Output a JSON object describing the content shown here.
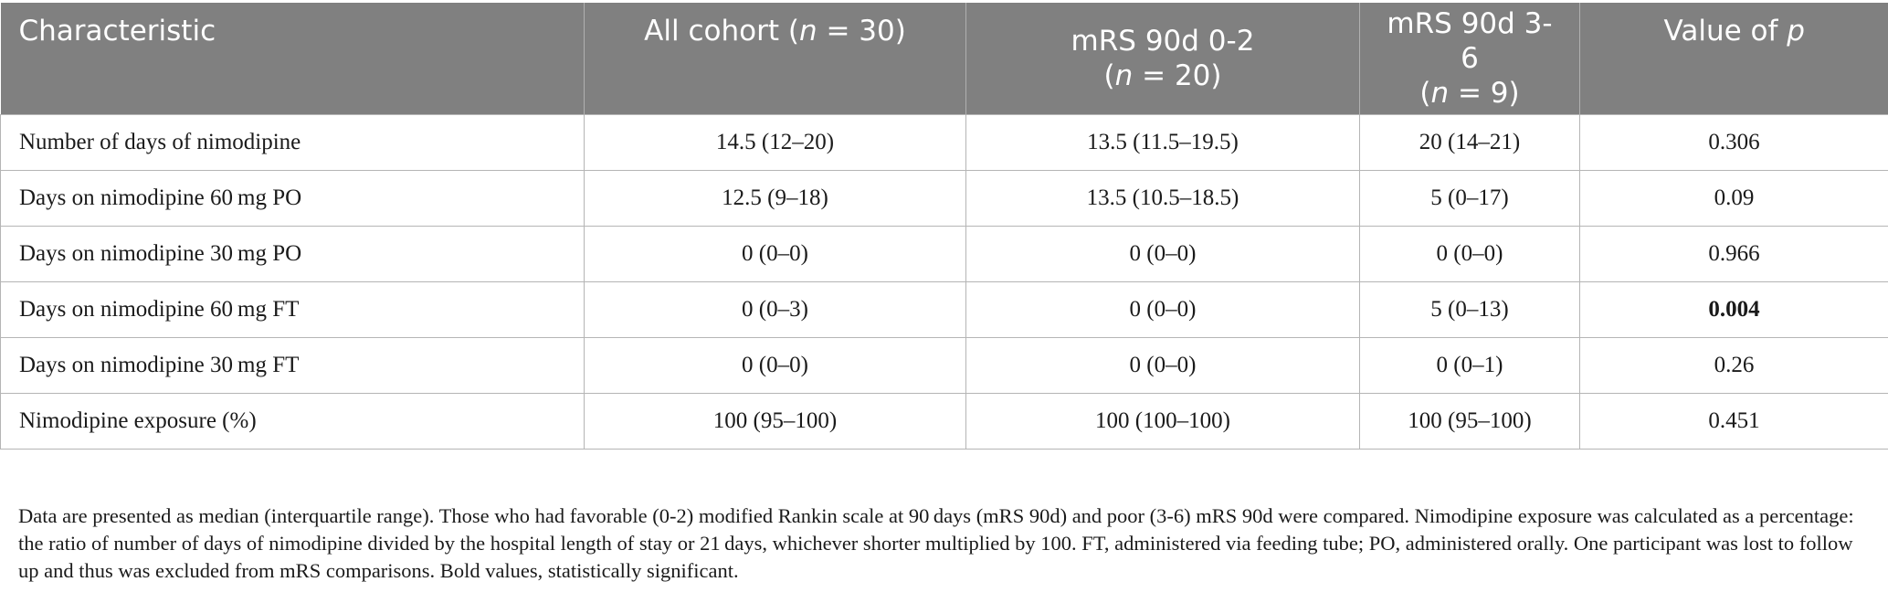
{
  "table": {
    "headers": [
      {
        "pre": "Characteristic",
        "ital": "",
        "post": "",
        "line2_pre": "",
        "line2_ital": "",
        "line2_post": ""
      },
      {
        "pre": "All cohort (",
        "ital": "n",
        "post": " = 30)",
        "line2_pre": "",
        "line2_ital": "",
        "line2_post": ""
      },
      {
        "pre": "mRS 90d 0-2",
        "ital": "",
        "post": "",
        "line2_pre": "(",
        "line2_ital": "n",
        "line2_post": " = 20)"
      },
      {
        "pre": "mRS 90d 3-6",
        "ital": "",
        "post": "",
        "line2_pre": "(",
        "line2_ital": "n",
        "line2_post": " = 9)"
      },
      {
        "pre": "Value of ",
        "ital": "p",
        "post": "",
        "line2_pre": "",
        "line2_ital": "",
        "line2_post": ""
      }
    ],
    "rows": [
      {
        "cells": [
          "Number of days of nimodipine",
          "14.5 (12–20)",
          "13.5 (11.5–19.5)",
          "20 (14–21)",
          "0.306"
        ],
        "bold_p": false
      },
      {
        "cells": [
          "Days on nimodipine 60 mg PO",
          "12.5 (9–18)",
          "13.5 (10.5–18.5)",
          "5 (0–17)",
          "0.09"
        ],
        "bold_p": false
      },
      {
        "cells": [
          "Days on nimodipine 30 mg PO",
          "0 (0–0)",
          "0 (0–0)",
          "0 (0–0)",
          "0.966"
        ],
        "bold_p": false
      },
      {
        "cells": [
          "Days on nimodipine 60 mg FT",
          "0 (0–3)",
          "0 (0–0)",
          "5 (0–13)",
          "0.004"
        ],
        "bold_p": true
      },
      {
        "cells": [
          "Days on nimodipine 30 mg FT",
          "0 (0–0)",
          "0 (0–0)",
          "0 (0–1)",
          "0.26"
        ],
        "bold_p": false
      },
      {
        "cells": [
          "Nimodipine exposure (%)",
          "100 (95–100)",
          "100 (100–100)",
          "100 (95–100)",
          "0.451"
        ],
        "bold_p": false
      }
    ]
  },
  "footnote": "Data are presented as median (interquartile range). Those who had favorable (0-2) modified Rankin scale at 90 days (mRS 90d) and poor (3-6) mRS 90d were compared. Nimodipine exposure was calculated as a percentage: the ratio of number of days of nimodipine divided by the hospital length of stay or 21 days, whichever shorter multiplied by 100. FT, administered via feeding tube; PO, administered orally. One participant was lost to follow up and thus was excluded from mRS comparisons. Bold values, statistically significant.",
  "colors": {
    "header_bg": "#808080",
    "header_text": "#ffffff",
    "grid": "#b5b5b5"
  }
}
